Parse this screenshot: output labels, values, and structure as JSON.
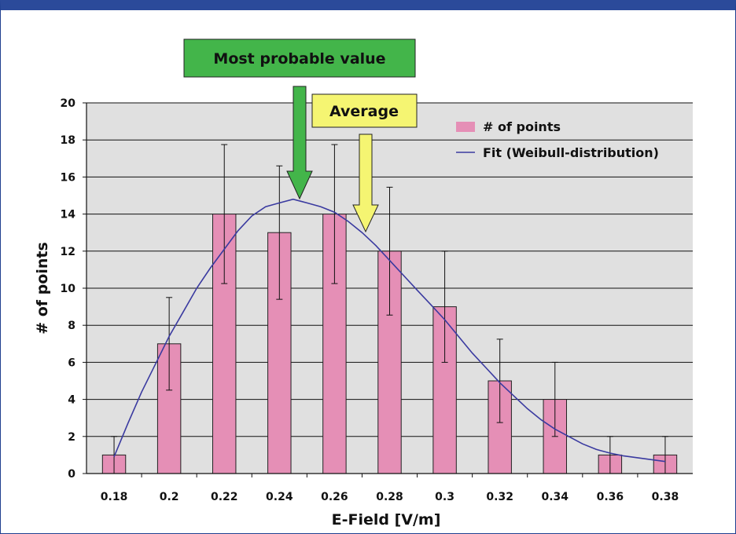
{
  "chart_data": {
    "type": "bar",
    "categories": [
      "0.18",
      "0.2",
      "0.22",
      "0.24",
      "0.26",
      "0.28",
      "0.3",
      "0.32",
      "0.34",
      "0.36",
      "0.38"
    ],
    "series": [
      {
        "name": "# of points",
        "values": [
          1,
          7,
          14,
          13,
          14,
          12,
          9,
          5,
          4,
          1,
          1
        ],
        "error_plus": [
          1,
          2.5,
          3.75,
          3.6,
          3.75,
          3.45,
          3,
          2.25,
          2,
          1,
          1
        ],
        "error_minus": [
          1,
          2.5,
          3.75,
          3.6,
          3.75,
          3.45,
          3,
          2.25,
          2,
          1,
          1
        ],
        "color": "#e58fb6"
      },
      {
        "name": "Fit (Weibull-distribution)",
        "type": "line",
        "x": [
          0.18,
          0.185,
          0.19,
          0.195,
          0.2,
          0.205,
          0.21,
          0.215,
          0.22,
          0.225,
          0.23,
          0.235,
          0.24,
          0.245,
          0.25,
          0.255,
          0.26,
          0.265,
          0.27,
          0.275,
          0.28,
          0.285,
          0.29,
          0.295,
          0.3,
          0.305,
          0.31,
          0.315,
          0.32,
          0.325,
          0.33,
          0.335,
          0.34,
          0.345,
          0.35,
          0.355,
          0.36,
          0.365,
          0.37,
          0.375,
          0.38
        ],
        "y": [
          0.9,
          2.7,
          4.4,
          5.9,
          7.4,
          8.7,
          10.0,
          11.1,
          12.1,
          13.1,
          13.9,
          14.4,
          14.6,
          14.8,
          14.6,
          14.4,
          14.1,
          13.6,
          13.0,
          12.3,
          11.5,
          10.7,
          9.9,
          9.1,
          8.3,
          7.4,
          6.5,
          5.7,
          4.9,
          4.2,
          3.5,
          2.9,
          2.4,
          2.0,
          1.6,
          1.3,
          1.1,
          0.95,
          0.85,
          0.75,
          0.65
        ],
        "color": "#3a3aa0"
      }
    ],
    "xlabel": "E-Field [V/m]",
    "ylabel": "# of points",
    "ylim": [
      0,
      20
    ],
    "yticks": [
      "0",
      "2",
      "4",
      "6",
      "8",
      "10",
      "12",
      "14",
      "16",
      "18",
      "20"
    ],
    "grid": true,
    "legend_position": "top-right",
    "annotations": [
      {
        "label": "Most probable value",
        "x": 0.245,
        "color": "#43b54a"
      },
      {
        "label": "Average",
        "x": 0.27,
        "color": "#f5f572"
      }
    ]
  },
  "colors": {
    "frame": "#2b4a9a",
    "plot_bg": "#e0e0e0",
    "bar": "#e58fb6",
    "fit_line": "#3a3aa0",
    "most_probable": "#43b54a",
    "average": "#f5f572"
  }
}
